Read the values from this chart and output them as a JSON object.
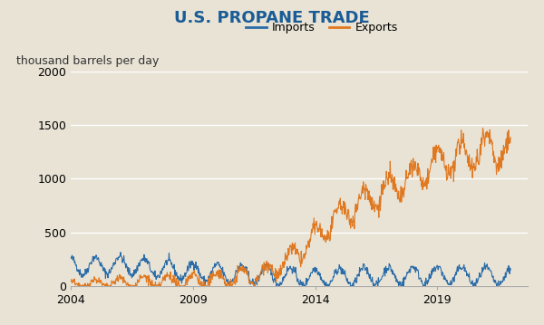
{
  "title": "U.S. PROPANE TRADE",
  "ylabel": "thousand barrels per day",
  "xlim_start": 2004.0,
  "xlim_end": 2022.7,
  "ylim": [
    0,
    2000
  ],
  "yticks": [
    0,
    500,
    1000,
    1500,
    2000
  ],
  "xticks": [
    2004,
    2009,
    2014,
    2019
  ],
  "background_color": "#e8e3d5",
  "imports_color": "#2b6ca8",
  "exports_color": "#e07820",
  "legend_labels": [
    "Imports",
    "Exports"
  ],
  "title_fontsize": 13,
  "axis_label_fontsize": 9,
  "tick_fontsize": 9
}
